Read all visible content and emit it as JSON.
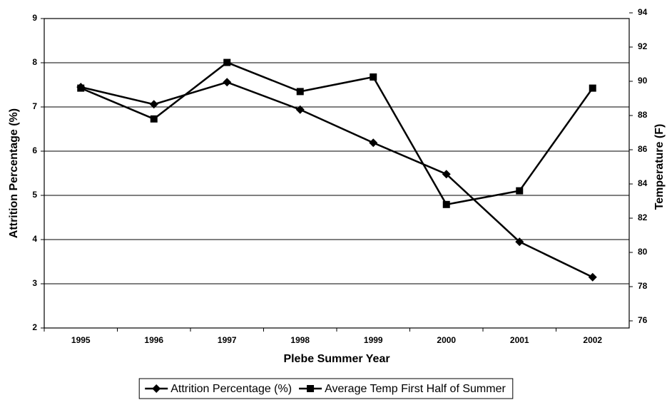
{
  "chart_data": {
    "type": "line",
    "x_label": "Plebe Summer Year",
    "y_label": "Attrition Percentage (%)",
    "y2_label": "Temperature (F)",
    "categories": [
      "1995",
      "1996",
      "1997",
      "1998",
      "1999",
      "2000",
      "2001",
      "2002"
    ],
    "series": [
      {
        "name": "Attrition Percentage (%)",
        "color": "#000000",
        "marker": "diamond",
        "values": [
          7.45,
          7.06,
          7.56,
          6.94,
          6.19,
          5.48,
          3.95,
          3.15
        ]
      },
      {
        "name": "Average Temp First Half of Summer",
        "color": "#000000",
        "marker": "square",
        "axis": "y2",
        "values": [
          89.6,
          87.8,
          91.1,
          89.4,
          90.25,
          82.8,
          83.6,
          89.6
        ]
      }
    ],
    "ylim": [
      2,
      9
    ],
    "yticks": [
      2,
      3,
      4,
      5,
      6,
      7,
      8,
      9
    ],
    "y2lim": [
      76,
      94
    ],
    "y2ticks": [
      76,
      78,
      80,
      82,
      84,
      86,
      88,
      90,
      92,
      94
    ],
    "grid": true,
    "legend": "bottom"
  }
}
